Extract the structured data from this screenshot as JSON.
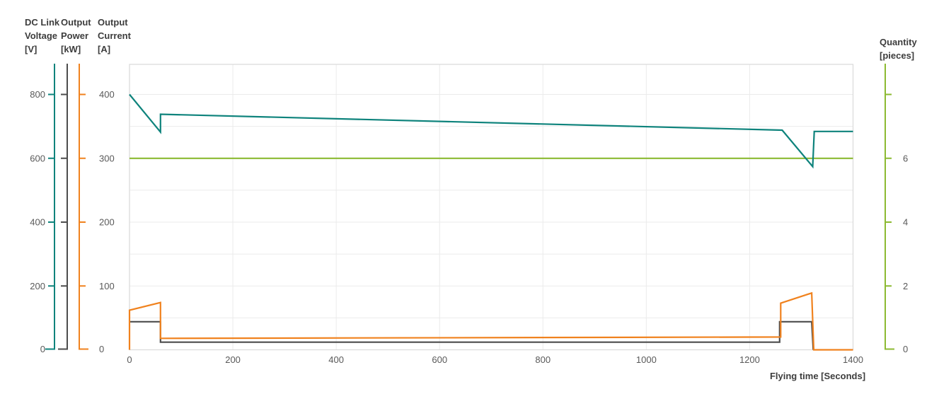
{
  "chart_data": {
    "type": "line",
    "title": "",
    "xlabel": "Flying time [Seconds]",
    "x_range": [
      0,
      1400
    ],
    "x_ticks": [
      0,
      200,
      400,
      600,
      800,
      1000,
      1200,
      1400
    ],
    "grid": {
      "x_step_seconds": 200,
      "y_step_display_units": 50,
      "grid_on": true,
      "legend": "none"
    },
    "axes": [
      {
        "id": "voltage",
        "title_lines": [
          "DC Link",
          "Voltage",
          "[V]"
        ],
        "color": "#0e837c",
        "range": [
          0,
          800
        ],
        "ticks": [
          800,
          600,
          400,
          200,
          0
        ],
        "unlabeled_ticks": [],
        "side": "left",
        "tick_dir": "left"
      },
      {
        "id": "power",
        "title_lines": [
          "Output",
          "Power",
          "[kW]"
        ],
        "color": "#4d4d4d",
        "range": [
          0,
          400
        ],
        "ticks": [],
        "unlabeled_ticks": [
          400,
          300,
          200,
          100
        ],
        "side": "left",
        "tick_dir": "left"
      },
      {
        "id": "current",
        "title_lines": [
          "Output",
          "Current",
          "[A]"
        ],
        "color": "#f0821e",
        "range": [
          0,
          400
        ],
        "ticks": [
          400,
          300,
          200,
          100,
          0
        ],
        "unlabeled_ticks": [],
        "side": "left",
        "tick_dir": "right"
      },
      {
        "id": "quantity",
        "title_lines": [
          "Quantity",
          "[pieces]"
        ],
        "color": "#8cba32",
        "range": [
          0,
          8
        ],
        "ticks": [
          6,
          4,
          2,
          0
        ],
        "unlabeled_ticks": [
          8
        ],
        "side": "right",
        "tick_dir": "right"
      }
    ],
    "series": [
      {
        "name": "Quantity",
        "axis": "quantity",
        "color": "#8cba32",
        "points": [
          [
            0,
            6
          ],
          [
            1400,
            6
          ]
        ]
      },
      {
        "name": "Output Power",
        "axis": "power",
        "color": "#4d4d4d",
        "points": [
          [
            0,
            44
          ],
          [
            60,
            44
          ],
          [
            60,
            12
          ],
          [
            1258,
            12
          ],
          [
            1258,
            44
          ],
          [
            1320,
            44
          ],
          [
            1323,
            0
          ]
        ]
      },
      {
        "name": "Output Current",
        "axis": "current",
        "color": "#f0821e",
        "points": [
          [
            0,
            0
          ],
          [
            0,
            62
          ],
          [
            60,
            74
          ],
          [
            60,
            18
          ],
          [
            1260,
            20
          ],
          [
            1260,
            73
          ],
          [
            1320,
            89
          ],
          [
            1324,
            0
          ],
          [
            1400,
            0
          ]
        ]
      },
      {
        "name": "DC Link Voltage",
        "axis": "voltage",
        "color": "#0e837c",
        "points": [
          [
            0,
            800
          ],
          [
            60,
            682
          ],
          [
            60,
            738
          ],
          [
            1263,
            688
          ],
          [
            1322,
            574
          ],
          [
            1325,
            684
          ],
          [
            1400,
            684
          ]
        ]
      }
    ],
    "colors": {
      "gridline": "#ebebeb",
      "plot_border": "#d9d9d9",
      "tick_label": "#595959",
      "header_text": "#3d3d3d",
      "background": "#ffffff"
    }
  }
}
